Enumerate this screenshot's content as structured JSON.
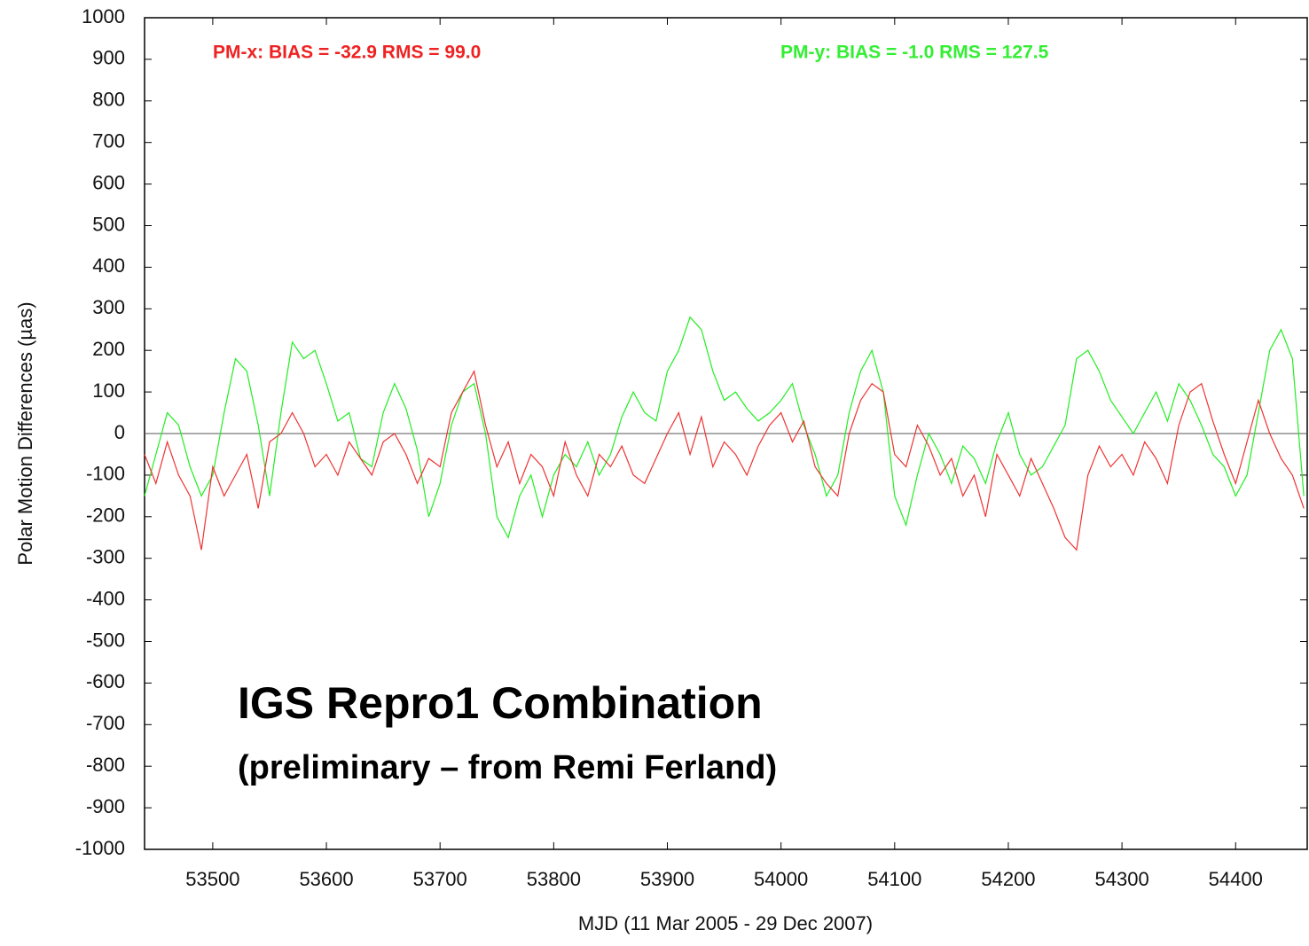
{
  "chart_data": {
    "type": "line",
    "annotations": [
      "PM-x:  BIAS = -32.9  RMS = 99.0",
      "PM-y:  BIAS = -1.0  RMS = 127.5",
      "IGS Repro1 Combination",
      "(preliminary – from Remi Ferland)"
    ],
    "xlabel": "MJD (11 Mar 2005 - 29 Dec 2007)",
    "ylabel": "Polar Motion Differences (µas)",
    "x": [
      53440,
      53450,
      53460,
      53470,
      53480,
      53490,
      53500,
      53510,
      53520,
      53530,
      53540,
      53550,
      53560,
      53570,
      53580,
      53590,
      53600,
      53610,
      53620,
      53630,
      53640,
      53650,
      53660,
      53670,
      53680,
      53690,
      53700,
      53710,
      53720,
      53730,
      53740,
      53750,
      53760,
      53770,
      53780,
      53790,
      53800,
      53810,
      53820,
      53830,
      53840,
      53850,
      53860,
      53870,
      53880,
      53890,
      53900,
      53910,
      53920,
      53930,
      53940,
      53950,
      53960,
      53970,
      53980,
      53990,
      54000,
      54010,
      54020,
      54030,
      54040,
      54050,
      54060,
      54070,
      54080,
      54090,
      54100,
      54110,
      54120,
      54130,
      54140,
      54150,
      54160,
      54170,
      54180,
      54190,
      54200,
      54210,
      54220,
      54230,
      54240,
      54250,
      54260,
      54270,
      54280,
      54290,
      54300,
      54310,
      54320,
      54330,
      54340,
      54350,
      54360,
      54370,
      54380,
      54390,
      54400,
      54410,
      54420,
      54430,
      54440,
      54450,
      54460
    ],
    "series": [
      {
        "name": "PM-y",
        "color": "#22ee22",
        "values": [
          -150,
          -50,
          50,
          20,
          -80,
          -150,
          -100,
          50,
          180,
          150,
          20,
          -150,
          50,
          220,
          180,
          200,
          120,
          30,
          50,
          -60,
          -80,
          50,
          120,
          60,
          -40,
          -200,
          -120,
          20,
          100,
          120,
          0,
          -200,
          -250,
          -150,
          -100,
          -200,
          -100,
          -50,
          -80,
          -20,
          -100,
          -50,
          40,
          100,
          50,
          30,
          150,
          200,
          280,
          250,
          150,
          80,
          100,
          60,
          30,
          50,
          80,
          120,
          20,
          -50,
          -150,
          -100,
          50,
          150,
          200,
          100,
          -150,
          -220,
          -100,
          0,
          -50,
          -120,
          -30,
          -60,
          -120,
          -20,
          50,
          -50,
          -100,
          -80,
          -30,
          20,
          180,
          200,
          150,
          80,
          40,
          0,
          50,
          100,
          30,
          120,
          80,
          20,
          -50,
          -80,
          -150,
          -100,
          50,
          200,
          250,
          180,
          -150
        ]
      },
      {
        "name": "PM-x",
        "color": "#ee3333",
        "values": [
          -50,
          -120,
          -20,
          -100,
          -150,
          -280,
          -80,
          -150,
          -100,
          -50,
          -180,
          -20,
          0,
          50,
          0,
          -80,
          -50,
          -100,
          -20,
          -60,
          -100,
          -20,
          0,
          -50,
          -120,
          -60,
          -80,
          50,
          100,
          150,
          20,
          -80,
          -20,
          -120,
          -50,
          -80,
          -150,
          -20,
          -100,
          -150,
          -50,
          -80,
          -30,
          -100,
          -120,
          -60,
          0,
          50,
          -50,
          40,
          -80,
          -20,
          -50,
          -100,
          -30,
          20,
          50,
          -20,
          30,
          -80,
          -120,
          -150,
          0,
          80,
          120,
          100,
          -50,
          -80,
          20,
          -30,
          -100,
          -60,
          -150,
          -100,
          -200,
          -50,
          -100,
          -150,
          -60,
          -120,
          -180,
          -250,
          -280,
          -100,
          -30,
          -80,
          -50,
          -100,
          -20,
          -60,
          -120,
          20,
          100,
          120,
          30,
          -50,
          -120,
          -20,
          80,
          0,
          -60,
          -100,
          -180
        ]
      }
    ],
    "xlim": [
      53440,
      54463
    ],
    "ylim": [
      -1000,
      1000
    ],
    "xticks": [
      53500,
      53600,
      53700,
      53800,
      53900,
      54000,
      54100,
      54200,
      54300,
      54400
    ],
    "yticks": [
      -1000,
      -900,
      -800,
      -700,
      -600,
      -500,
      -400,
      -300,
      -200,
      -100,
      0,
      100,
      200,
      300,
      400,
      500,
      600,
      700,
      800,
      900,
      1000
    ]
  }
}
